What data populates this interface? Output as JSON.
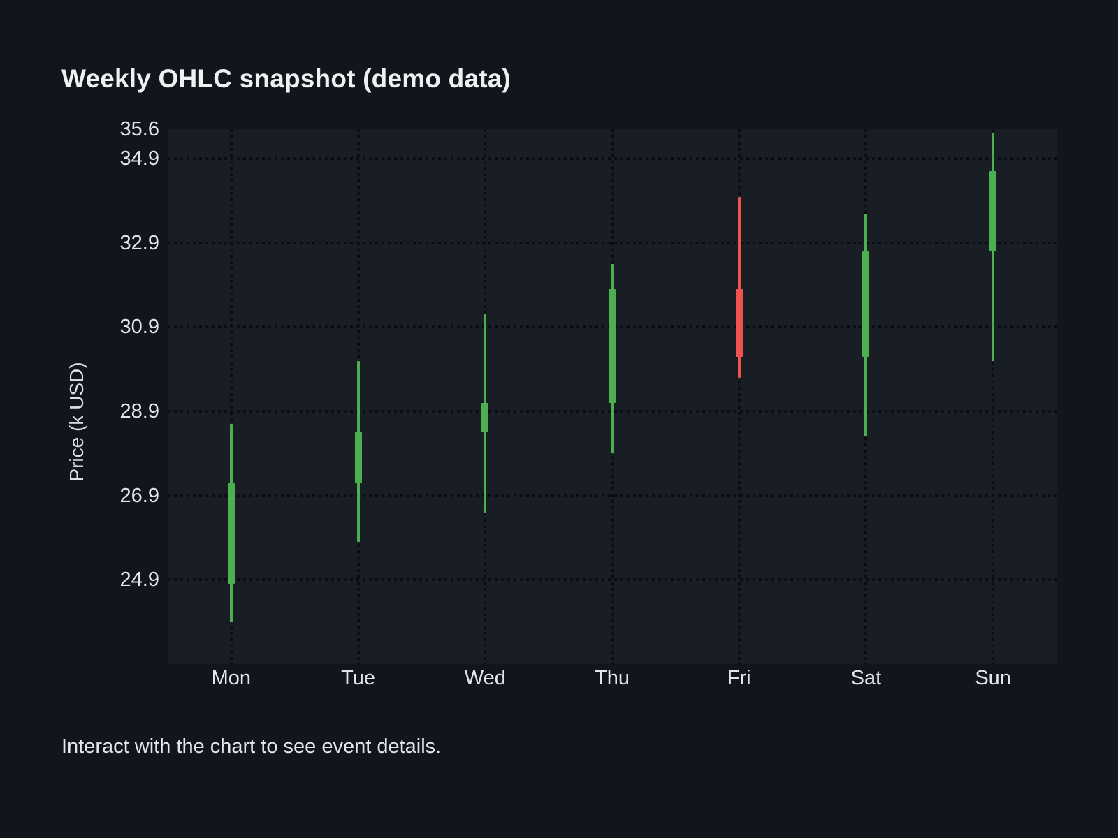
{
  "page": {
    "title": "Weekly OHLC snapshot (demo data)",
    "footer_note": "Interact with the chart to see event details."
  },
  "colors": {
    "page_background": "#12151b",
    "plot_background": "#191d24",
    "grid": "#0a0d12",
    "text": "#e2e5ea",
    "up": "#4caf50",
    "down": "#ef5350"
  },
  "chart_data": {
    "type": "candlestick",
    "title": "Weekly OHLC snapshot (demo data)",
    "xlabel": "",
    "ylabel": "Price (k USD)",
    "categories": [
      "Mon",
      "Tue",
      "Wed",
      "Thu",
      "Fri",
      "Sat",
      "Sun"
    ],
    "series": [
      {
        "name": "Weekly OHLC",
        "ohlc": [
          {
            "day": "Mon",
            "open": 24.8,
            "high": 28.6,
            "low": 23.9,
            "close": 27.2,
            "direction": "up"
          },
          {
            "day": "Tue",
            "open": 27.2,
            "high": 30.1,
            "low": 25.8,
            "close": 28.4,
            "direction": "up"
          },
          {
            "day": "Wed",
            "open": 28.4,
            "high": 31.2,
            "low": 26.5,
            "close": 29.1,
            "direction": "up"
          },
          {
            "day": "Thu",
            "open": 29.1,
            "high": 32.4,
            "low": 27.9,
            "close": 31.8,
            "direction": "up"
          },
          {
            "day": "Fri",
            "open": 31.8,
            "high": 34.0,
            "low": 29.7,
            "close": 30.2,
            "direction": "down"
          },
          {
            "day": "Sat",
            "open": 30.2,
            "high": 33.6,
            "low": 28.3,
            "close": 32.7,
            "direction": "up"
          },
          {
            "day": "Sun",
            "open": 32.7,
            "high": 35.5,
            "low": 30.1,
            "close": 34.6,
            "direction": "up"
          }
        ]
      }
    ],
    "ylim": [
      22.9,
      35.6
    ],
    "yticks": [
      35.6,
      34.9,
      32.9,
      30.9,
      28.9,
      26.9,
      24.9
    ],
    "grid": "dotted, horizontal at yticks (except top edge) and vertical at each category center",
    "legend": "none",
    "up_color": "#4caf50",
    "down_color": "#ef5350"
  }
}
